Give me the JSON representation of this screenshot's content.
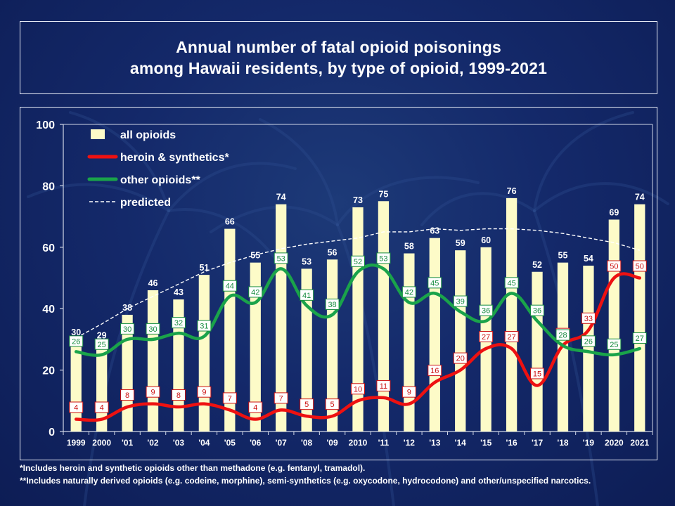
{
  "title": {
    "line1": "Annual number of fatal opioid poisonings",
    "line2": "among Hawaii residents, by type of opioid, 1999-2021"
  },
  "footnotes": {
    "note1": "*Includes heroin and synthetic opioids other than methadone (e.g. fentanyl, tramadol).",
    "note2": "**Includes naturally derived opioids (e.g. codeine, morphine), semi-synthetics (e.g. oxycodone, hydrocodone) and other/unspecified narcotics."
  },
  "colors": {
    "bar_fill": "#fdfbc8",
    "heroin": "#ee1111",
    "other": "#1aa34a",
    "predicted": "#ffffff",
    "background": "#14296a"
  },
  "chart_data": {
    "type": "bar",
    "title": "Annual number of fatal opioid poisonings among Hawaii residents, by type of opioid, 1999-2021",
    "categories": [
      "1999",
      "2000",
      "'01",
      "'02",
      "'03",
      "'04",
      "'05",
      "'06",
      "'07",
      "'08",
      "'09",
      "2010",
      "'11",
      "'12",
      "'13",
      "'14",
      "'15",
      "'16",
      "'17",
      "'18",
      "'19",
      "2020",
      "2021"
    ],
    "ylim": [
      0,
      100
    ],
    "yticks": [
      0,
      20,
      40,
      60,
      80,
      100
    ],
    "grid": false,
    "legend_position": "top-left",
    "series": [
      {
        "name": "all opioids",
        "type": "bar",
        "values": [
          30,
          29,
          38,
          46,
          43,
          51,
          66,
          55,
          74,
          53,
          56,
          73,
          75,
          58,
          63,
          59,
          60,
          76,
          52,
          55,
          54,
          69,
          74
        ]
      },
      {
        "name": "heroin & synthetics*",
        "type": "line",
        "values": [
          4,
          4,
          8,
          9,
          8,
          9,
          7,
          4,
          7,
          5,
          5,
          10,
          11,
          9,
          16,
          20,
          27,
          27,
          15,
          28,
          33,
          50,
          50
        ]
      },
      {
        "name": "other opioids**",
        "type": "line",
        "values": [
          26,
          25,
          30,
          30,
          32,
          31,
          44,
          42,
          53,
          41,
          38,
          52,
          53,
          42,
          45,
          39,
          36,
          45,
          36,
          28,
          26,
          25,
          27
        ]
      },
      {
        "name": "predicted",
        "type": "line",
        "style": "dashed",
        "values": [
          30.5,
          35,
          40,
          44,
          48,
          52,
          55,
          57.5,
          59.5,
          61,
          62,
          63,
          65,
          65,
          66,
          65.5,
          66,
          66,
          65.5,
          64.5,
          63,
          61.5,
          59
        ]
      }
    ],
    "value_labels": {
      "all opioids": true,
      "heroin & synthetics*": true,
      "other opioids**": true,
      "predicted": false
    }
  }
}
